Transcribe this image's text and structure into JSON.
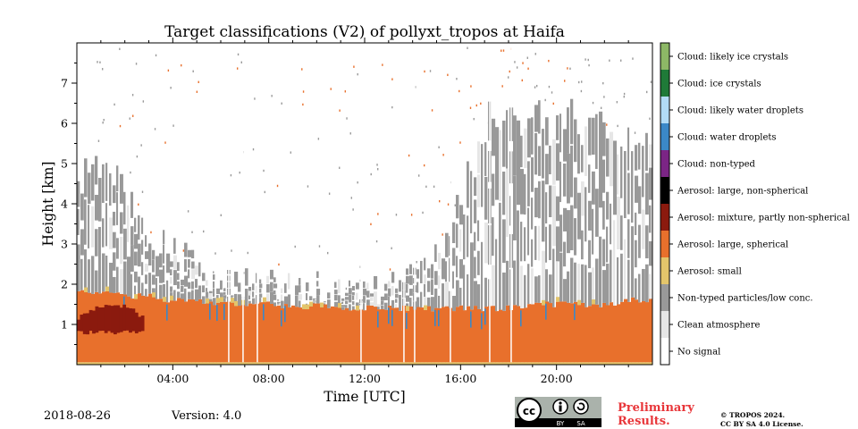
{
  "chart_data": {
    "type": "heatmap",
    "title": "Target classifications (V2) of pollyxt_tropos at Haifa",
    "xlabel": "Time [UTC]",
    "ylabel": "Height [km]",
    "xlim": [
      0,
      24
    ],
    "ylim": [
      0,
      8
    ],
    "x_ticks": [
      {
        "value": 4,
        "label": "04:00"
      },
      {
        "value": 8,
        "label": "08:00"
      },
      {
        "value": 12,
        "label": "12:00"
      },
      {
        "value": 16,
        "label": "16:00"
      },
      {
        "value": 20,
        "label": "20:00"
      }
    ],
    "y_ticks": [
      {
        "value": 1,
        "label": "1"
      },
      {
        "value": 2,
        "label": "2"
      },
      {
        "value": 3,
        "label": "3"
      },
      {
        "value": 4,
        "label": "4"
      },
      {
        "value": 5,
        "label": "5"
      },
      {
        "value": 6,
        "label": "6"
      },
      {
        "value": 7,
        "label": "7"
      }
    ],
    "classes": [
      {
        "label": "No signal",
        "color": "#ffffff"
      },
      {
        "label": "Clean atmosphere",
        "color": "#e6e6e6"
      },
      {
        "label": "Non-typed particles/low conc.",
        "color": "#999999"
      },
      {
        "label": "Aerosol: small",
        "color": "#e3c56b"
      },
      {
        "label": "Aerosol: large, spherical",
        "color": "#e8702c"
      },
      {
        "label": "Aerosol: mixture, partly non-spherical",
        "color": "#8b1a0e"
      },
      {
        "label": "Aerosol: large, non-spherical",
        "color": "#000000"
      },
      {
        "label": "Cloud: non-typed",
        "color": "#7b2585"
      },
      {
        "label": "Cloud: water droplets",
        "color": "#3b88c7"
      },
      {
        "label": "Cloud: likely water droplets",
        "color": "#b2dcf6"
      },
      {
        "label": "Cloud: ice crystals",
        "color": "#1f7a38"
      },
      {
        "label": "Cloud: likely ice crystals",
        "color": "#8db866"
      }
    ],
    "layer_tops_km": [
      {
        "time": 0,
        "aerosol_top": 1.8,
        "particle_top": 4.8
      },
      {
        "time": 1,
        "aerosol_top": 1.8,
        "particle_top": 5.0
      },
      {
        "time": 2,
        "aerosol_top": 1.7,
        "particle_top": 4.6
      },
      {
        "time": 3,
        "aerosol_top": 1.7,
        "particle_top": 3.4
      },
      {
        "time": 4,
        "aerosol_top": 1.6,
        "particle_top": 2.8
      },
      {
        "time": 5,
        "aerosol_top": 1.6,
        "particle_top": 2.4
      },
      {
        "time": 6,
        "aerosol_top": 1.5,
        "particle_top": 2.2
      },
      {
        "time": 7,
        "aerosol_top": 1.5,
        "particle_top": 2.0
      },
      {
        "time": 8,
        "aerosol_top": 1.5,
        "particle_top": 2.0
      },
      {
        "time": 9,
        "aerosol_top": 1.45,
        "particle_top": 1.9
      },
      {
        "time": 10,
        "aerosol_top": 1.45,
        "particle_top": 1.9
      },
      {
        "time": 11,
        "aerosol_top": 1.4,
        "particle_top": 1.9
      },
      {
        "time": 12,
        "aerosol_top": 1.4,
        "particle_top": 1.9
      },
      {
        "time": 13,
        "aerosol_top": 1.4,
        "particle_top": 2.1
      },
      {
        "time": 14,
        "aerosol_top": 1.4,
        "particle_top": 2.5
      },
      {
        "time": 15,
        "aerosol_top": 1.4,
        "particle_top": 3.0
      },
      {
        "time": 16,
        "aerosol_top": 1.4,
        "particle_top": 4.0
      },
      {
        "time": 17,
        "aerosol_top": 1.4,
        "particle_top": 6.2
      },
      {
        "time": 18,
        "aerosol_top": 1.4,
        "particle_top": 6.6
      },
      {
        "time": 19,
        "aerosol_top": 1.5,
        "particle_top": 6.4
      },
      {
        "time": 20,
        "aerosol_top": 1.5,
        "particle_top": 6.2
      },
      {
        "time": 21,
        "aerosol_top": 1.5,
        "particle_top": 6.4
      },
      {
        "time": 22,
        "aerosol_top": 1.5,
        "particle_top": 6.0
      },
      {
        "time": 23,
        "aerosol_top": 1.6,
        "particle_top": 5.6
      },
      {
        "time": 24,
        "aerosol_top": 1.6,
        "particle_top": 5.4
      }
    ],
    "mixture_layer": {
      "time_start": 0,
      "time_end": 2.8,
      "bottom_km": 0.8,
      "top_km": 1.5
    },
    "grid": false,
    "legend_position": "right colorbar"
  },
  "footer": {
    "date": "2018-08-26",
    "version": "Version: 4.0",
    "preliminary_line1": "Preliminary",
    "preliminary_line2": "Results.",
    "copyright_line1": "© TROPOS 2024.",
    "copyright_line2": "CC BY SA 4.0 License.",
    "cc_badge": {
      "cc": "cc",
      "by": "BY",
      "sa": "SA"
    }
  }
}
